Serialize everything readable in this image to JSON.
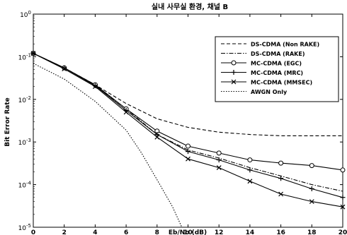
{
  "chart_data": {
    "type": "line",
    "title": "실내 사무실 환경, 채널 B",
    "xlabel": "Eb/No (dB)",
    "ylabel": "Bit Error Rate",
    "x_ticks": [
      0,
      2,
      4,
      6,
      8,
      10,
      12,
      14,
      16,
      18,
      20
    ],
    "y_ticks": [
      1,
      0.1,
      0.01,
      0.001,
      0.0001,
      1e-05
    ],
    "y_tick_labels": [
      {
        "base": "10",
        "exp": "0"
      },
      {
        "base": "10",
        "exp": "-1"
      },
      {
        "base": "10",
        "exp": "-2"
      },
      {
        "base": "10",
        "exp": "-3"
      },
      {
        "base": "10",
        "exp": "-4"
      },
      {
        "base": "10",
        "exp": "-5"
      }
    ],
    "xlim": [
      0,
      20
    ],
    "ylim": [
      1e-05,
      1
    ],
    "yscale": "log",
    "grid": false,
    "legend_position": "top-right",
    "series": [
      {
        "name": "DS-CDMA (Non RAKE)",
        "style": "dashed",
        "marker": "none",
        "color": "#000000",
        "x": [
          0,
          2,
          4,
          6,
          8,
          10,
          12,
          14,
          16,
          18,
          20
        ],
        "y": [
          0.12,
          0.055,
          0.022,
          0.008,
          0.0035,
          0.0022,
          0.0017,
          0.0015,
          0.0014,
          0.0014,
          0.0014
        ]
      },
      {
        "name": "DS-CDMA (RAKE)",
        "style": "dashdot",
        "marker": "none",
        "color": "#000000",
        "x": [
          0,
          2,
          4,
          6,
          8,
          10,
          12,
          14,
          16,
          18,
          20
        ],
        "y": [
          0.12,
          0.055,
          0.021,
          0.006,
          0.0015,
          0.00065,
          0.00042,
          0.00025,
          0.00016,
          0.0001,
          7e-05
        ]
      },
      {
        "name": "MC-CDMA (EGC)",
        "style": "solid",
        "marker": "circle",
        "color": "#000000",
        "x": [
          0,
          2,
          4,
          6,
          8,
          10,
          12,
          14,
          16,
          18,
          20
        ],
        "y": [
          0.12,
          0.055,
          0.022,
          0.006,
          0.0018,
          0.0008,
          0.00055,
          0.00038,
          0.00032,
          0.00028,
          0.00022
        ]
      },
      {
        "name": "MC-CDMA (MRC)",
        "style": "solid",
        "marker": "plus",
        "color": "#000000",
        "x": [
          0,
          2,
          4,
          6,
          8,
          10,
          12,
          14,
          16,
          18,
          20
        ],
        "y": [
          0.12,
          0.055,
          0.021,
          0.0055,
          0.0015,
          0.0006,
          0.00038,
          0.00022,
          0.00014,
          8e-05,
          5e-05
        ]
      },
      {
        "name": "MC-CDMA (MMSEC)",
        "style": "solid",
        "marker": "x",
        "color": "#000000",
        "x": [
          0,
          2,
          4,
          6,
          8,
          10,
          12,
          14,
          16,
          18,
          20
        ],
        "y": [
          0.12,
          0.052,
          0.02,
          0.005,
          0.0013,
          0.0004,
          0.00025,
          0.00012,
          6e-05,
          4e-05,
          3e-05
        ]
      },
      {
        "name": "AWGN Only",
        "style": "dotted",
        "marker": "none",
        "color": "#000000",
        "x": [
          0,
          2,
          4,
          6,
          7,
          8,
          9,
          9.6
        ],
        "y": [
          0.07,
          0.03,
          0.009,
          0.0019,
          0.00055,
          0.00013,
          3e-05,
          1e-05
        ]
      }
    ]
  }
}
